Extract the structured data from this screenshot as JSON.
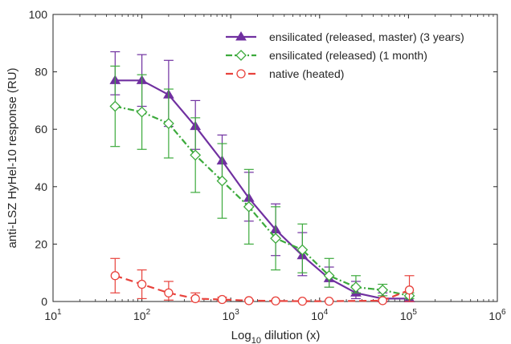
{
  "chart_data": {
    "type": "line",
    "title": "",
    "xlabel": "Log",
    "xlabel_sub": "10",
    "xlabel_rest": " dilution (x)",
    "ylabel": "anti-LSZ HyHel-10 response (RU)",
    "xscale": "log",
    "xlim": [
      10,
      1000000
    ],
    "ylim": [
      0,
      100
    ],
    "x_ticks": [
      {
        "value": 10,
        "base": "10",
        "exp": "1"
      },
      {
        "value": 100,
        "base": "10",
        "exp": "2"
      },
      {
        "value": 1000,
        "base": "10",
        "exp": "3"
      },
      {
        "value": 10000,
        "base": "10",
        "exp": "4"
      },
      {
        "value": 100000,
        "base": "10",
        "exp": "5"
      },
      {
        "value": 1000000,
        "base": "10",
        "exp": "6"
      }
    ],
    "y_ticks": [
      "0",
      "20",
      "40",
      "60",
      "80",
      "100"
    ],
    "grid": false,
    "legend_position": "top-right",
    "series": [
      {
        "name": "ensilicated (released, master) (3 years)",
        "color": "#7030a0",
        "marker": "triangle-filled",
        "line_style": "solid",
        "x": [
          50,
          100,
          200,
          400,
          800,
          1600,
          3200,
          6400,
          12800,
          25600,
          51200,
          102400
        ],
        "y": [
          77,
          77,
          72,
          61,
          49,
          36,
          25,
          16,
          8,
          3,
          1,
          1
        ],
        "err_low": [
          72,
          68,
          61,
          53,
          42,
          28,
          16,
          9,
          5,
          1,
          0,
          0
        ],
        "err_high": [
          87,
          86,
          84,
          70,
          58,
          45,
          34,
          24,
          12,
          7,
          3,
          2
        ]
      },
      {
        "name": "ensilicated (released) (1 month)",
        "color": "#3caa3c",
        "marker": "diamond-open",
        "line_style": "dashdot",
        "x": [
          50,
          100,
          200,
          400,
          800,
          1600,
          3200,
          6400,
          12800,
          25600,
          51200,
          102400
        ],
        "y": [
          68,
          66,
          62,
          51,
          42,
          33,
          22,
          18,
          9,
          5,
          4,
          2
        ],
        "err_low": [
          54,
          53,
          50,
          38,
          29,
          20,
          11,
          10,
          5,
          3,
          2,
          1
        ],
        "err_high": [
          82,
          79,
          74,
          64,
          55,
          46,
          33,
          27,
          15,
          9,
          6,
          3
        ]
      },
      {
        "name": "native (heated)",
        "color": "#e8423c",
        "marker": "circle-open",
        "line_style": "dashed",
        "x": [
          50,
          100,
          200,
          400,
          800,
          1600,
          3200,
          6400,
          12800,
          51200,
          102400
        ],
        "y": [
          9,
          6,
          3,
          1,
          0.7,
          0.3,
          0.2,
          0.1,
          0.1,
          0.3,
          4
        ],
        "err_low": [
          3,
          1,
          0.5,
          0,
          0,
          0,
          0,
          0,
          0,
          0,
          0
        ],
        "err_high": [
          15,
          11,
          7,
          3,
          1.5,
          0.6,
          0.4,
          0.3,
          0.3,
          0.6,
          9
        ]
      }
    ]
  }
}
